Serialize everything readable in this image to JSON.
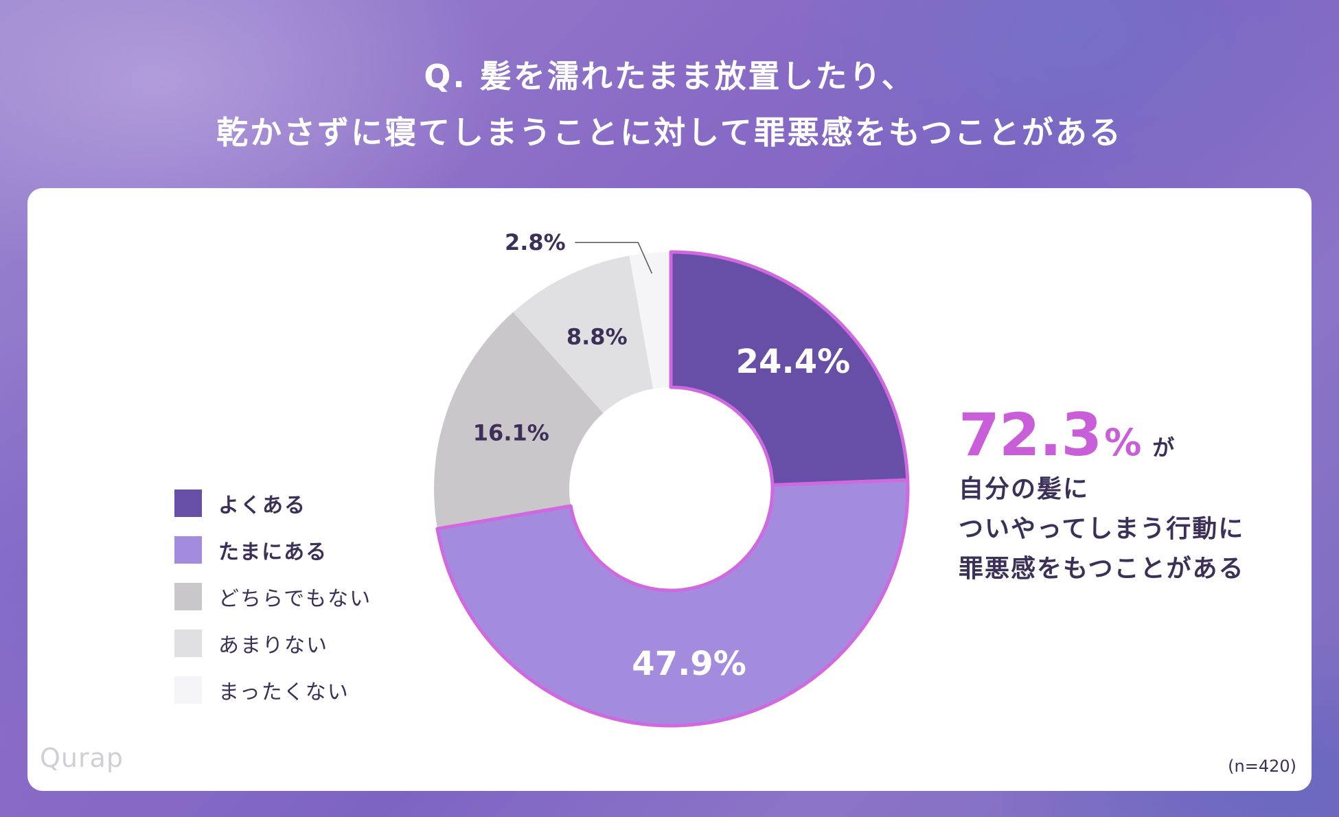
{
  "title": {
    "line1": "Q. 髪を濡れたまま放置したり、",
    "line2": "乾かさずに寝てしまうことに対して罪悪感をもつことがある"
  },
  "legend": [
    {
      "label": "よくある",
      "bold": true
    },
    {
      "label": "たまにある",
      "bold": true
    },
    {
      "label": "どちらでもない",
      "bold": false
    },
    {
      "label": "あまりない",
      "bold": false
    },
    {
      "label": "まったくない",
      "bold": false
    }
  ],
  "chart_data": {
    "type": "pie",
    "subtype": "donut",
    "title": "Q. 髪を濡れたまま放置したり、乾かさずに寝てしまうことに対して罪悪感をもつことがある",
    "categories": [
      "よくある",
      "たまにある",
      "どちらでもない",
      "あまりない",
      "まったくない"
    ],
    "values": [
      24.4,
      47.9,
      16.1,
      8.8,
      2.8
    ],
    "labels": [
      "24.4%",
      "47.9%",
      "16.1%",
      "8.8%",
      "2.8%"
    ],
    "colors": [
      "#674ea6",
      "#a38cdd",
      "#c9c7ca",
      "#e0dfe1",
      "#f5f4f6"
    ],
    "label_colors": [
      "#ffffff",
      "#ffffff",
      "#3a3058",
      "#3a3058",
      "#3a3058"
    ],
    "highlight_color": "#d068e0",
    "highlighted_categories": [
      "よくある",
      "たまにある"
    ],
    "legend_position": "left"
  },
  "callout": {
    "number": "72.3",
    "percent": "%",
    "suffix": "が",
    "lines": [
      "自分の髪に",
      "ついやってしまう行動に",
      "罪悪感をもつことがある"
    ]
  },
  "brand": "Qurap",
  "sample_size": "(n=420)"
}
